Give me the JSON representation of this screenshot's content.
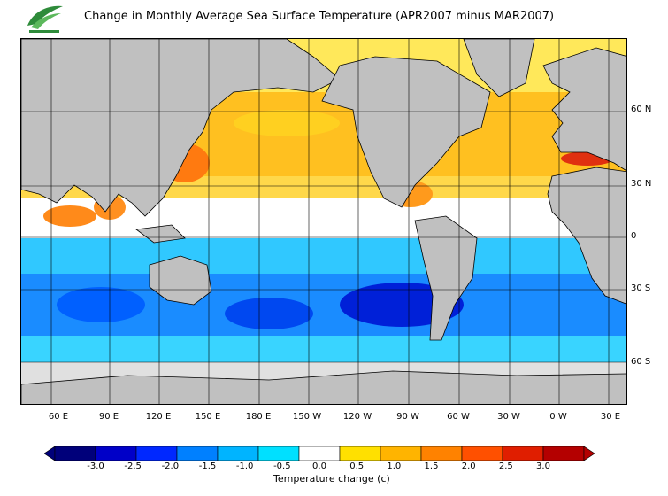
{
  "title": "Change in Monthly Average Sea Surface Temperature (APR2007 minus MAR2007)",
  "logo_icon": "leaf-logo-icon",
  "map": {
    "longitude_labels": [
      "60 E",
      "90 E",
      "120 E",
      "150 E",
      "180 E",
      "150 W",
      "120 W",
      "90 W",
      "60 W",
      "30 W",
      "0 W",
      "30 E"
    ],
    "latitude_labels": [
      "60 N",
      "30 N",
      "0",
      "30 S",
      "60 S"
    ],
    "land_color": "#c0c0c0",
    "no_data_color": "#e0e0e0",
    "ocean_bands": [
      {
        "region": "north-high",
        "change_c": 0.5
      },
      {
        "region": "north-mid",
        "change_c": 1.0
      },
      {
        "region": "tropics",
        "change_c": 0.0
      },
      {
        "region": "south-mid",
        "change_c": -1.5
      },
      {
        "region": "south-high",
        "change_c": -0.5
      }
    ]
  },
  "colorbar": {
    "labels": [
      "-3.0",
      "-2.5",
      "-2.0",
      "-1.5",
      "-1.0",
      "-0.5",
      "0.0",
      "0.5",
      "1.0",
      "1.5",
      "2.0",
      "2.5",
      "3.0"
    ],
    "colors": [
      "#00007a",
      "#0000c8",
      "#0028ff",
      "#0080ff",
      "#00b4ff",
      "#00e0ff",
      "#ffffff",
      "#ffe000",
      "#ffb400",
      "#ff8200",
      "#ff5000",
      "#e01e00",
      "#b40000"
    ],
    "title": "Temperature change  (c)"
  }
}
